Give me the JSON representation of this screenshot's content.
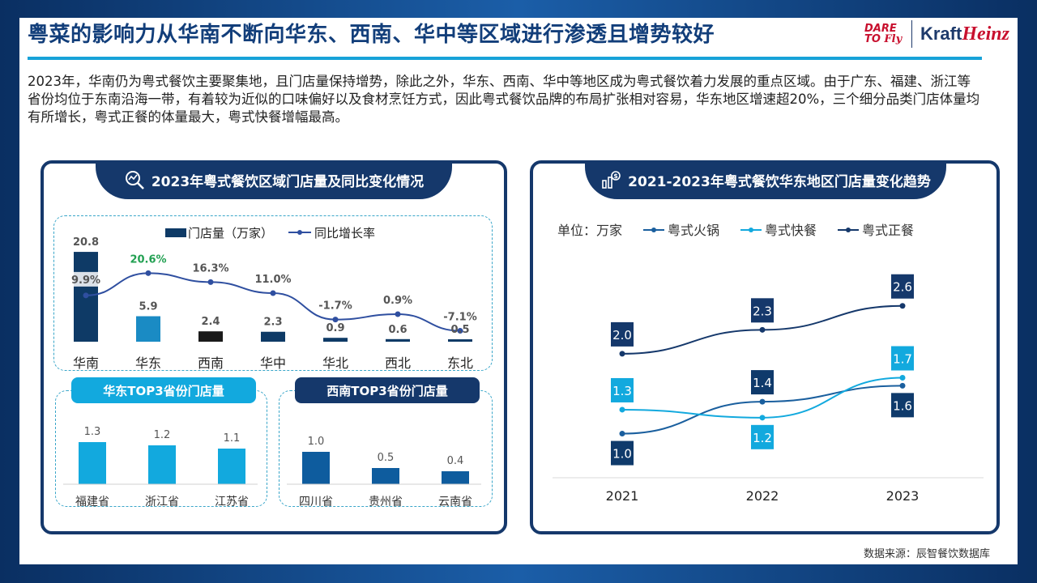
{
  "title": "粤菜的影响力从华南不断向华东、西南、华中等区域进行渗透且增势较好",
  "logo": {
    "dare_line1": "DARE",
    "dare_line2": "TO",
    "dare_fly": "Fly",
    "kraft": "Kraft",
    "heinz": "Heinz"
  },
  "intro": "2023年，华南仍为粤式餐饮主要聚集地，且门店量保持增势，除此之外，华东、西南、华中等地区成为粤式餐饮着力发展的重点区域。由于广东、福建、浙江等省份均位于东南沿海一带，有着较为近似的口味偏好以及食材烹饪方式，因此粤式餐饮品牌的布局扩张相对容易，华东地区增速超20%，三个细分品类门店体量均有所增长，粤式正餐的体量最大，粤式快餐增幅最高。",
  "left_panel": {
    "title": "2023年粤式餐饮区域门店量及同比变化情况",
    "icon": "magnifier-chart-icon"
  },
  "right_panel": {
    "title": "2021-2023年粤式餐饮华东地区门店量变化趋势",
    "icon": "money-trend-icon"
  },
  "source": "数据来源：辰智餐饮数据库",
  "colors": {
    "navy": "#15386b",
    "bar_dark": "#0e3a66",
    "bar_mid": "#1a8bc4",
    "bar_black": "#1a1a1a",
    "line_blue": "#2f4fa0",
    "light_blue": "#12a9de",
    "green": "#22a052"
  },
  "chart_data": [
    {
      "type": "bar",
      "legend": [
        "门店量（万家）",
        "同比增长率"
      ],
      "categories": [
        "华南",
        "华东",
        "西南",
        "华中",
        "华北",
        "西北",
        "东北"
      ],
      "series": [
        {
          "name": "门店量（万家）",
          "values": [
            20.8,
            5.9,
            2.4,
            2.3,
            0.9,
            0.6,
            0.5
          ]
        },
        {
          "name": "同比增长率",
          "values": [
            9.9,
            20.6,
            16.3,
            11.0,
            -1.7,
            0.9,
            -7.1
          ]
        }
      ],
      "value_labels": [
        "20.8",
        "5.9",
        "2.4",
        "2.3",
        "0.9",
        "0.6",
        "0.5"
      ],
      "rate_labels": [
        "9.9%",
        "20.6%",
        "16.3%",
        "11.0%",
        "-1.7%",
        "0.9%",
        "-7.1%"
      ],
      "bar_colors": [
        "#0e3a66",
        "#1a8bc4",
        "#1a1a1a",
        "#0e3a66",
        "#0e3a66",
        "#0e3a66",
        "#0e3a66"
      ],
      "highlight": "华东"
    },
    {
      "type": "bar",
      "title": "华东TOP3省份门店量",
      "categories": [
        "福建省",
        "浙江省",
        "江苏省"
      ],
      "values": [
        1.3,
        1.2,
        1.1
      ],
      "labels": [
        "1.3",
        "1.2",
        "1.1"
      ],
      "color": "#12a9de"
    },
    {
      "type": "bar",
      "title": "西南TOP3省份门店量",
      "categories": [
        "四川省",
        "贵州省",
        "云南省"
      ],
      "values": [
        1.0,
        0.5,
        0.4
      ],
      "labels": [
        "1.0",
        "0.5",
        "0.4"
      ],
      "color": "#0e5c9e"
    },
    {
      "type": "line",
      "unit": "单位：万家",
      "x": [
        "2021",
        "2022",
        "2023"
      ],
      "series": [
        {
          "name": "粤式火锅",
          "values": [
            1.0,
            1.4,
            1.6
          ],
          "labels": [
            "1.0",
            "1.4",
            "1.6"
          ],
          "color": "#1a5f9e",
          "label_bg": "#0f3a6b"
        },
        {
          "name": "粤式快餐",
          "values": [
            1.3,
            1.2,
            1.7
          ],
          "labels": [
            "1.3",
            "1.2",
            "1.7"
          ],
          "color": "#12a9de",
          "label_bg": "#12a9de"
        },
        {
          "name": "粤式正餐",
          "values": [
            2.0,
            2.3,
            2.6
          ],
          "labels": [
            "2.0",
            "2.3",
            "2.6"
          ],
          "color": "#15386b",
          "label_bg": "#15386b"
        }
      ]
    }
  ]
}
